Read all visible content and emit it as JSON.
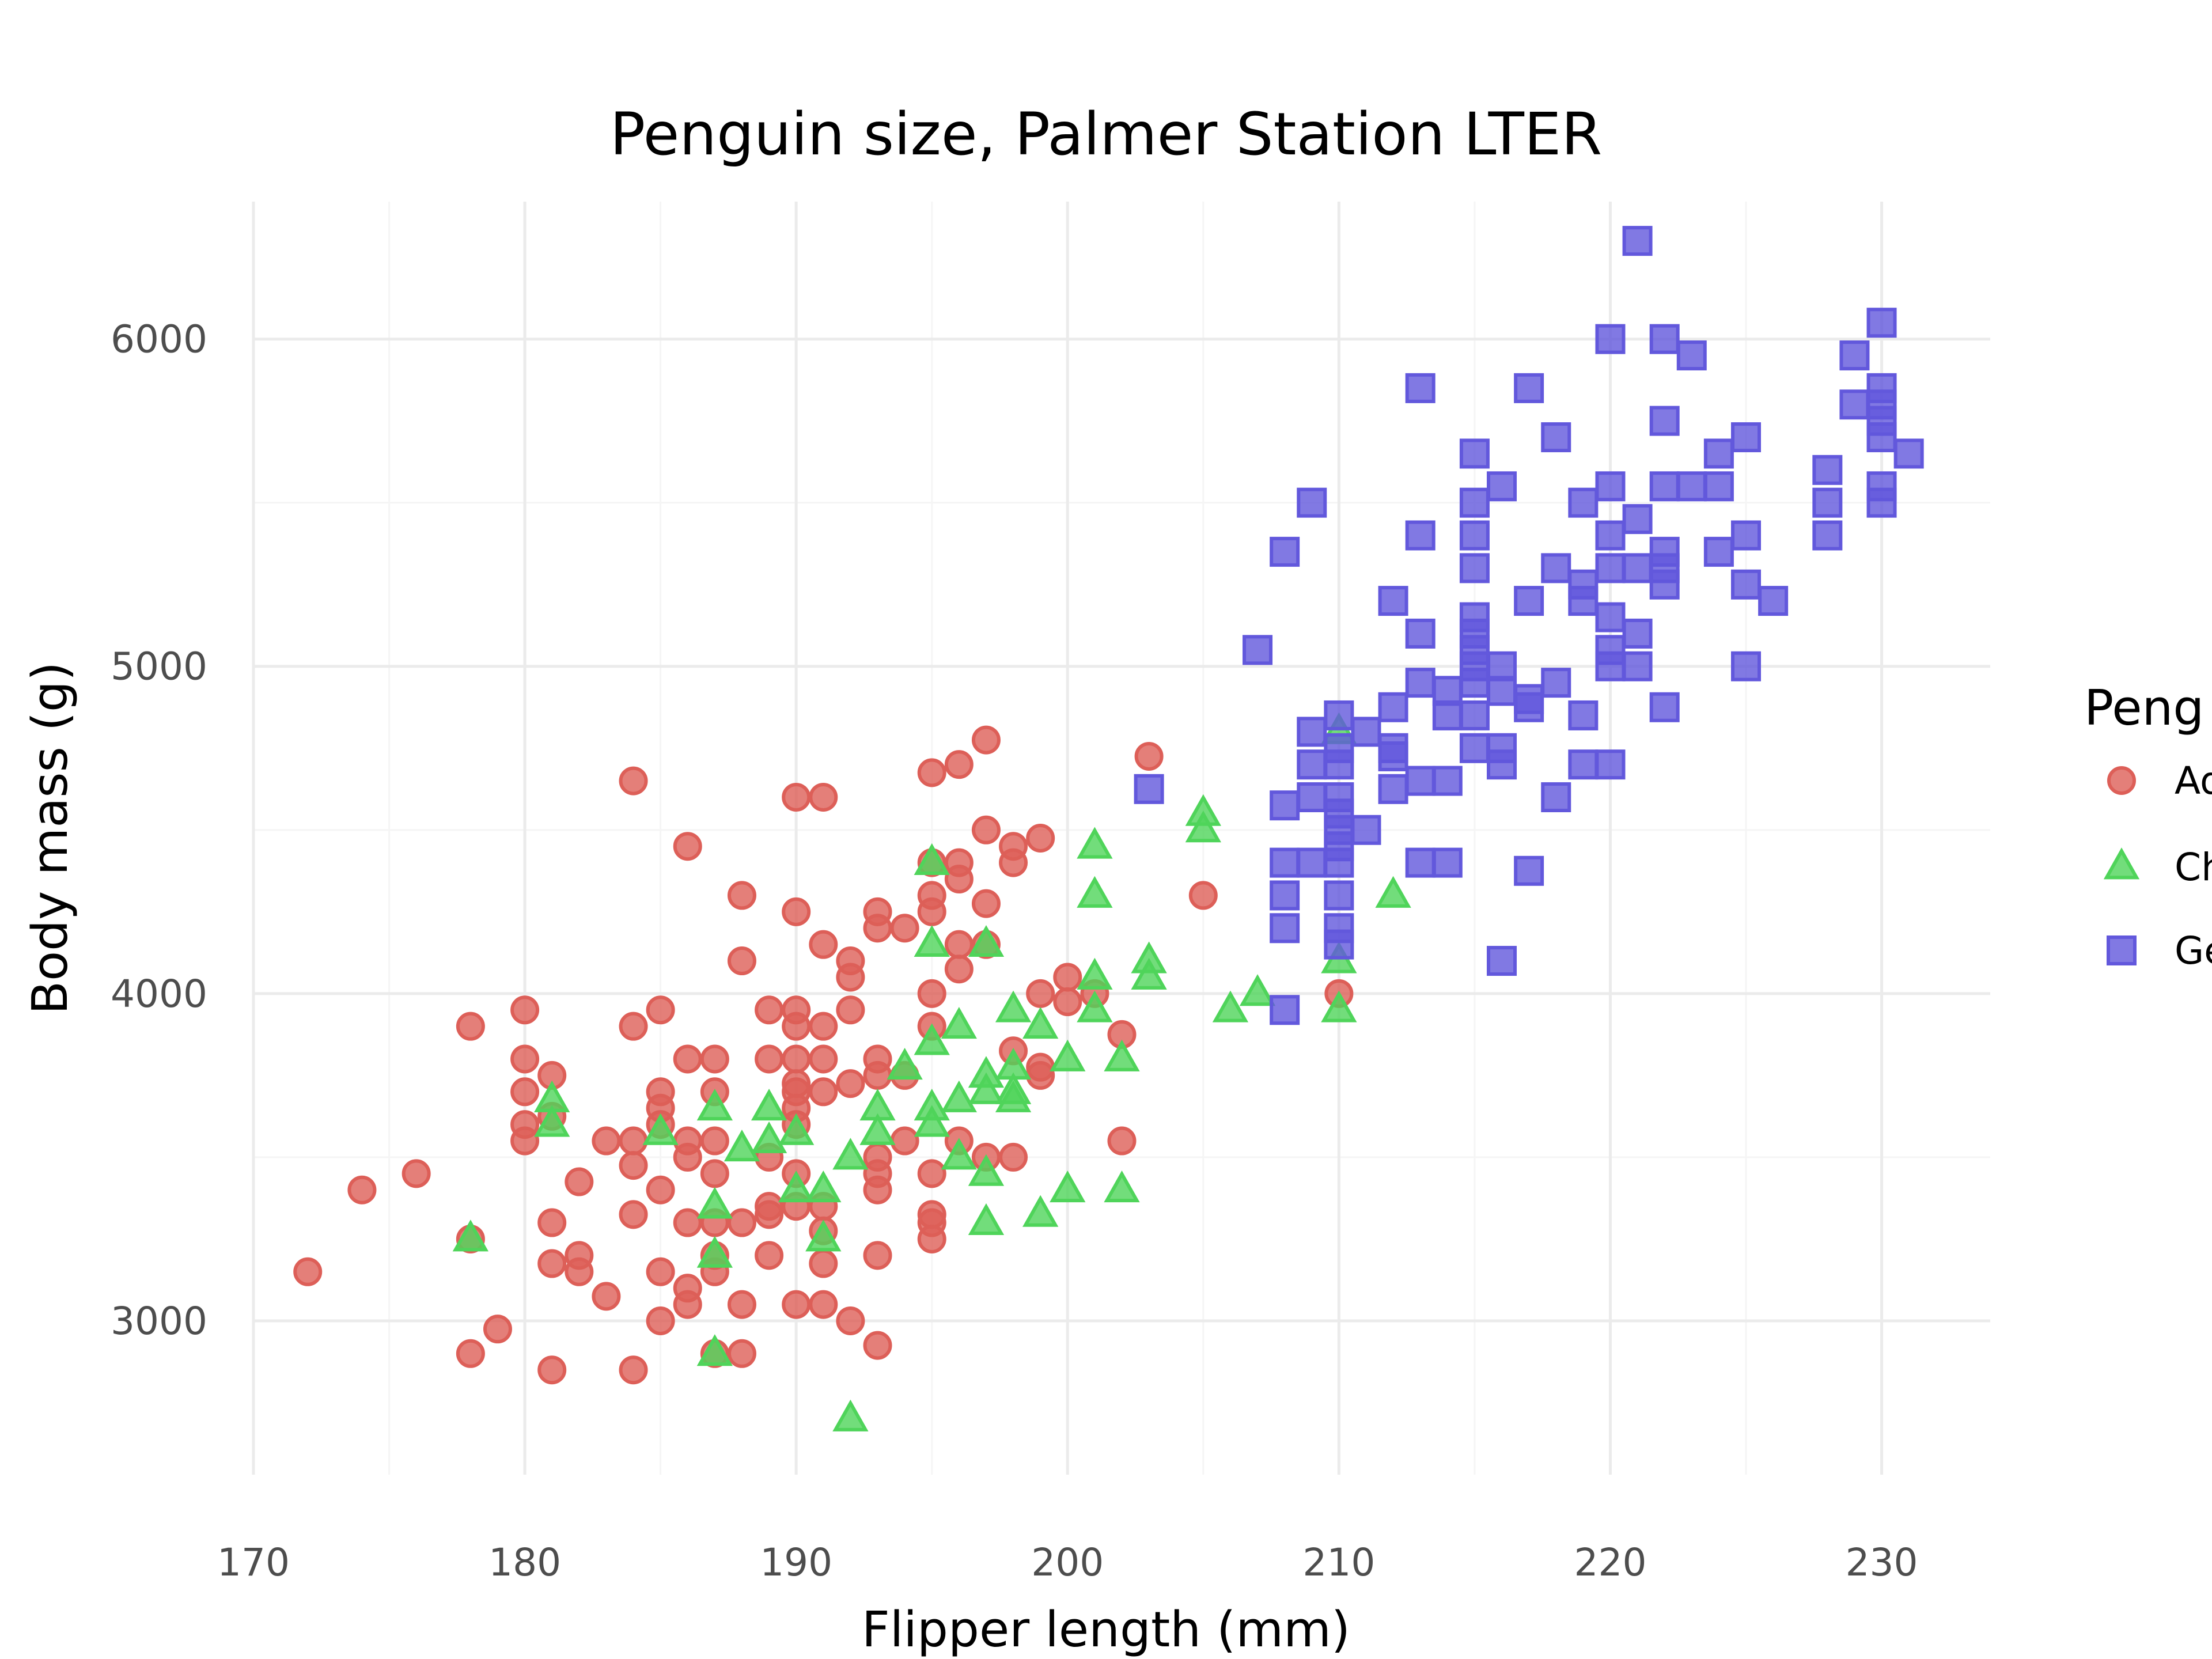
{
  "chart_data": {
    "type": "scatter",
    "title": "Penguin size, Palmer Station LTER",
    "xlabel": "Flipper length (mm)",
    "ylabel": "Body mass (g)",
    "xlim": [
      170,
      234
    ],
    "ylim": [
      2530,
      6420
    ],
    "x_ticks": [
      170,
      180,
      190,
      200,
      210,
      220,
      230
    ],
    "y_ticks": [
      3000,
      4000,
      5000,
      6000
    ],
    "grid": true,
    "legend": {
      "title": "Peng",
      "position": "right",
      "entries": [
        "Ad",
        "Ch",
        "Ge"
      ]
    },
    "series": [
      {
        "name": "Ad",
        "marker": "circle",
        "color": "#dd5f58",
        "points": [
          [
            172,
            3150
          ],
          [
            174,
            3400
          ],
          [
            176,
            3450
          ],
          [
            178,
            3900
          ],
          [
            178,
            3250
          ],
          [
            178,
            2900
          ],
          [
            179,
            2975
          ],
          [
            180,
            3950
          ],
          [
            180,
            3800
          ],
          [
            180,
            3700
          ],
          [
            180,
            3600
          ],
          [
            180,
            3550
          ],
          [
            181,
            3750
          ],
          [
            181,
            3625
          ],
          [
            181,
            3300
          ],
          [
            181,
            3175
          ],
          [
            181,
            2850
          ],
          [
            182,
            3425
          ],
          [
            182,
            3200
          ],
          [
            182,
            3150
          ],
          [
            183,
            3550
          ],
          [
            183,
            3075
          ],
          [
            184,
            4650
          ],
          [
            184,
            3900
          ],
          [
            184,
            3550
          ],
          [
            184,
            3475
          ],
          [
            184,
            3325
          ],
          [
            184,
            2850
          ],
          [
            185,
            3950
          ],
          [
            185,
            3700
          ],
          [
            185,
            3650
          ],
          [
            185,
            3600
          ],
          [
            185,
            3400
          ],
          [
            185,
            3150
          ],
          [
            185,
            3000
          ],
          [
            186,
            4450
          ],
          [
            186,
            3800
          ],
          [
            186,
            3550
          ],
          [
            186,
            3500
          ],
          [
            186,
            3300
          ],
          [
            186,
            3100
          ],
          [
            186,
            3050
          ],
          [
            187,
            3800
          ],
          [
            187,
            3700
          ],
          [
            187,
            3550
          ],
          [
            187,
            3450
          ],
          [
            187,
            3300
          ],
          [
            187,
            3200
          ],
          [
            187,
            3150
          ],
          [
            187,
            2900
          ],
          [
            188,
            4300
          ],
          [
            188,
            4100
          ],
          [
            188,
            3300
          ],
          [
            188,
            3050
          ],
          [
            188,
            2900
          ],
          [
            189,
            3950
          ],
          [
            189,
            3800
          ],
          [
            189,
            3500
          ],
          [
            189,
            3350
          ],
          [
            189,
            3325
          ],
          [
            189,
            3200
          ],
          [
            190,
            4600
          ],
          [
            190,
            4250
          ],
          [
            190,
            3950
          ],
          [
            190,
            3900
          ],
          [
            190,
            3800
          ],
          [
            190,
            3725
          ],
          [
            190,
            3700
          ],
          [
            190,
            3650
          ],
          [
            190,
            3600
          ],
          [
            190,
            3450
          ],
          [
            190,
            3350
          ],
          [
            190,
            3050
          ],
          [
            191,
            4600
          ],
          [
            191,
            4150
          ],
          [
            191,
            3900
          ],
          [
            191,
            3800
          ],
          [
            191,
            3700
          ],
          [
            191,
            3350
          ],
          [
            191,
            3275
          ],
          [
            191,
            3175
          ],
          [
            191,
            3050
          ],
          [
            192,
            4100
          ],
          [
            192,
            4050
          ],
          [
            192,
            3950
          ],
          [
            192,
            3725
          ],
          [
            192,
            3000
          ],
          [
            193,
            4250
          ],
          [
            193,
            4200
          ],
          [
            193,
            3800
          ],
          [
            193,
            3750
          ],
          [
            193,
            3500
          ],
          [
            193,
            3450
          ],
          [
            193,
            3400
          ],
          [
            193,
            3200
          ],
          [
            193,
            2925
          ],
          [
            194,
            4200
          ],
          [
            194,
            3750
          ],
          [
            194,
            3550
          ],
          [
            195,
            4675
          ],
          [
            195,
            4400
          ],
          [
            195,
            4300
          ],
          [
            195,
            4250
          ],
          [
            195,
            4000
          ],
          [
            195,
            3900
          ],
          [
            195,
            3450
          ],
          [
            195,
            3325
          ],
          [
            195,
            3300
          ],
          [
            195,
            3250
          ],
          [
            196,
            4700
          ],
          [
            196,
            4400
          ],
          [
            196,
            4350
          ],
          [
            196,
            4150
          ],
          [
            196,
            4075
          ],
          [
            196,
            3550
          ],
          [
            197,
            4775
          ],
          [
            197,
            4500
          ],
          [
            197,
            4275
          ],
          [
            197,
            4150
          ],
          [
            197,
            3500
          ],
          [
            198,
            4450
          ],
          [
            198,
            4400
          ],
          [
            198,
            3825
          ],
          [
            198,
            3500
          ],
          [
            199,
            4475
          ],
          [
            199,
            4000
          ],
          [
            199,
            3775
          ],
          [
            199,
            3750
          ],
          [
            200,
            4050
          ],
          [
            200,
            3975
          ],
          [
            201,
            4000
          ],
          [
            202,
            3875
          ],
          [
            202,
            3550
          ],
          [
            203,
            4725
          ],
          [
            205,
            4300
          ],
          [
            210,
            4000
          ]
        ]
      },
      {
        "name": "Ch",
        "marker": "triangle",
        "color": "#4fd45a",
        "points": [
          [
            178,
            3250
          ],
          [
            181,
            3675
          ],
          [
            181,
            3600
          ],
          [
            185,
            3575
          ],
          [
            187,
            3650
          ],
          [
            187,
            3350
          ],
          [
            187,
            3200
          ],
          [
            187,
            2900
          ],
          [
            188,
            3525
          ],
          [
            189,
            3650
          ],
          [
            189,
            3550
          ],
          [
            190,
            3575
          ],
          [
            190,
            3400
          ],
          [
            191,
            3400
          ],
          [
            191,
            3250
          ],
          [
            192,
            3500
          ],
          [
            192,
            2700
          ],
          [
            193,
            3650
          ],
          [
            193,
            3575
          ],
          [
            194,
            3775
          ],
          [
            195,
            4400
          ],
          [
            195,
            4150
          ],
          [
            195,
            3850
          ],
          [
            195,
            3650
          ],
          [
            195,
            3600
          ],
          [
            196,
            3900
          ],
          [
            196,
            3675
          ],
          [
            196,
            3500
          ],
          [
            197,
            4150
          ],
          [
            197,
            3750
          ],
          [
            197,
            3700
          ],
          [
            197,
            3450
          ],
          [
            197,
            3300
          ],
          [
            198,
            3950
          ],
          [
            198,
            3775
          ],
          [
            198,
            3700
          ],
          [
            198,
            3675
          ],
          [
            199,
            3900
          ],
          [
            199,
            3325
          ],
          [
            200,
            3800
          ],
          [
            200,
            3400
          ],
          [
            201,
            4450
          ],
          [
            201,
            4300
          ],
          [
            201,
            4050
          ],
          [
            201,
            3950
          ],
          [
            202,
            3800
          ],
          [
            202,
            3400
          ],
          [
            203,
            4100
          ],
          [
            203,
            4050
          ],
          [
            205,
            4550
          ],
          [
            205,
            4500
          ],
          [
            206,
            3950
          ],
          [
            207,
            4000
          ],
          [
            210,
            4800
          ],
          [
            210,
            4100
          ],
          [
            210,
            3950
          ],
          [
            212,
            4300
          ]
        ]
      },
      {
        "name": "Ge",
        "marker": "square",
        "color": "#6258dc",
        "points": [
          [
            203,
            4625
          ],
          [
            207,
            5050
          ],
          [
            208,
            4575
          ],
          [
            208,
            4400
          ],
          [
            208,
            4300
          ],
          [
            208,
            4200
          ],
          [
            208,
            3950
          ],
          [
            208,
            5350
          ],
          [
            209,
            5500
          ],
          [
            209,
            4800
          ],
          [
            209,
            4700
          ],
          [
            209,
            4600
          ],
          [
            209,
            4400
          ],
          [
            210,
            4850
          ],
          [
            210,
            4750
          ],
          [
            210,
            4700
          ],
          [
            210,
            4600
          ],
          [
            210,
            4550
          ],
          [
            210,
            4500
          ],
          [
            210,
            4450
          ],
          [
            210,
            4400
          ],
          [
            210,
            4300
          ],
          [
            210,
            4200
          ],
          [
            210,
            4150
          ],
          [
            211,
            4800
          ],
          [
            211,
            4500
          ],
          [
            212,
            5200
          ],
          [
            212,
            4875
          ],
          [
            212,
            4750
          ],
          [
            212,
            4725
          ],
          [
            212,
            4625
          ],
          [
            213,
            5850
          ],
          [
            213,
            5400
          ],
          [
            213,
            5100
          ],
          [
            213,
            4950
          ],
          [
            213,
            4650
          ],
          [
            213,
            4400
          ],
          [
            214,
            4925
          ],
          [
            214,
            4850
          ],
          [
            214,
            4650
          ],
          [
            214,
            4400
          ],
          [
            215,
            5650
          ],
          [
            215,
            5500
          ],
          [
            215,
            5400
          ],
          [
            215,
            5300
          ],
          [
            215,
            5150
          ],
          [
            215,
            5100
          ],
          [
            215,
            5050
          ],
          [
            215,
            5000
          ],
          [
            215,
            4950
          ],
          [
            215,
            4850
          ],
          [
            215,
            4750
          ],
          [
            216,
            5550
          ],
          [
            216,
            5000
          ],
          [
            216,
            4925
          ],
          [
            216,
            4750
          ],
          [
            216,
            4700
          ],
          [
            216,
            4100
          ],
          [
            217,
            5850
          ],
          [
            217,
            5200
          ],
          [
            217,
            4900
          ],
          [
            217,
            4875
          ],
          [
            217,
            4375
          ],
          [
            218,
            5700
          ],
          [
            218,
            5300
          ],
          [
            218,
            4950
          ],
          [
            218,
            4600
          ],
          [
            219,
            5500
          ],
          [
            219,
            5250
          ],
          [
            219,
            5200
          ],
          [
            219,
            4850
          ],
          [
            219,
            4700
          ],
          [
            220,
            6000
          ],
          [
            220,
            5550
          ],
          [
            220,
            5400
          ],
          [
            220,
            5300
          ],
          [
            220,
            5150
          ],
          [
            220,
            5050
          ],
          [
            220,
            5000
          ],
          [
            220,
            4700
          ],
          [
            221,
            6300
          ],
          [
            221,
            5450
          ],
          [
            221,
            5300
          ],
          [
            221,
            5100
          ],
          [
            221,
            5000
          ],
          [
            222,
            6000
          ],
          [
            222,
            5750
          ],
          [
            222,
            5550
          ],
          [
            222,
            5350
          ],
          [
            222,
            5300
          ],
          [
            222,
            5250
          ],
          [
            222,
            4875
          ],
          [
            223,
            5950
          ],
          [
            223,
            5550
          ],
          [
            224,
            5650
          ],
          [
            224,
            5550
          ],
          [
            224,
            5350
          ],
          [
            225,
            5700
          ],
          [
            225,
            5400
          ],
          [
            225,
            5250
          ],
          [
            225,
            5000
          ],
          [
            226,
            5200
          ],
          [
            228,
            5600
          ],
          [
            228,
            5500
          ],
          [
            228,
            5400
          ],
          [
            229,
            5950
          ],
          [
            229,
            5800
          ],
          [
            230,
            6050
          ],
          [
            230,
            5850
          ],
          [
            230,
            5800
          ],
          [
            230,
            5750
          ],
          [
            230,
            5700
          ],
          [
            230,
            5550
          ],
          [
            230,
            5500
          ],
          [
            231,
            5650
          ]
        ]
      }
    ]
  }
}
